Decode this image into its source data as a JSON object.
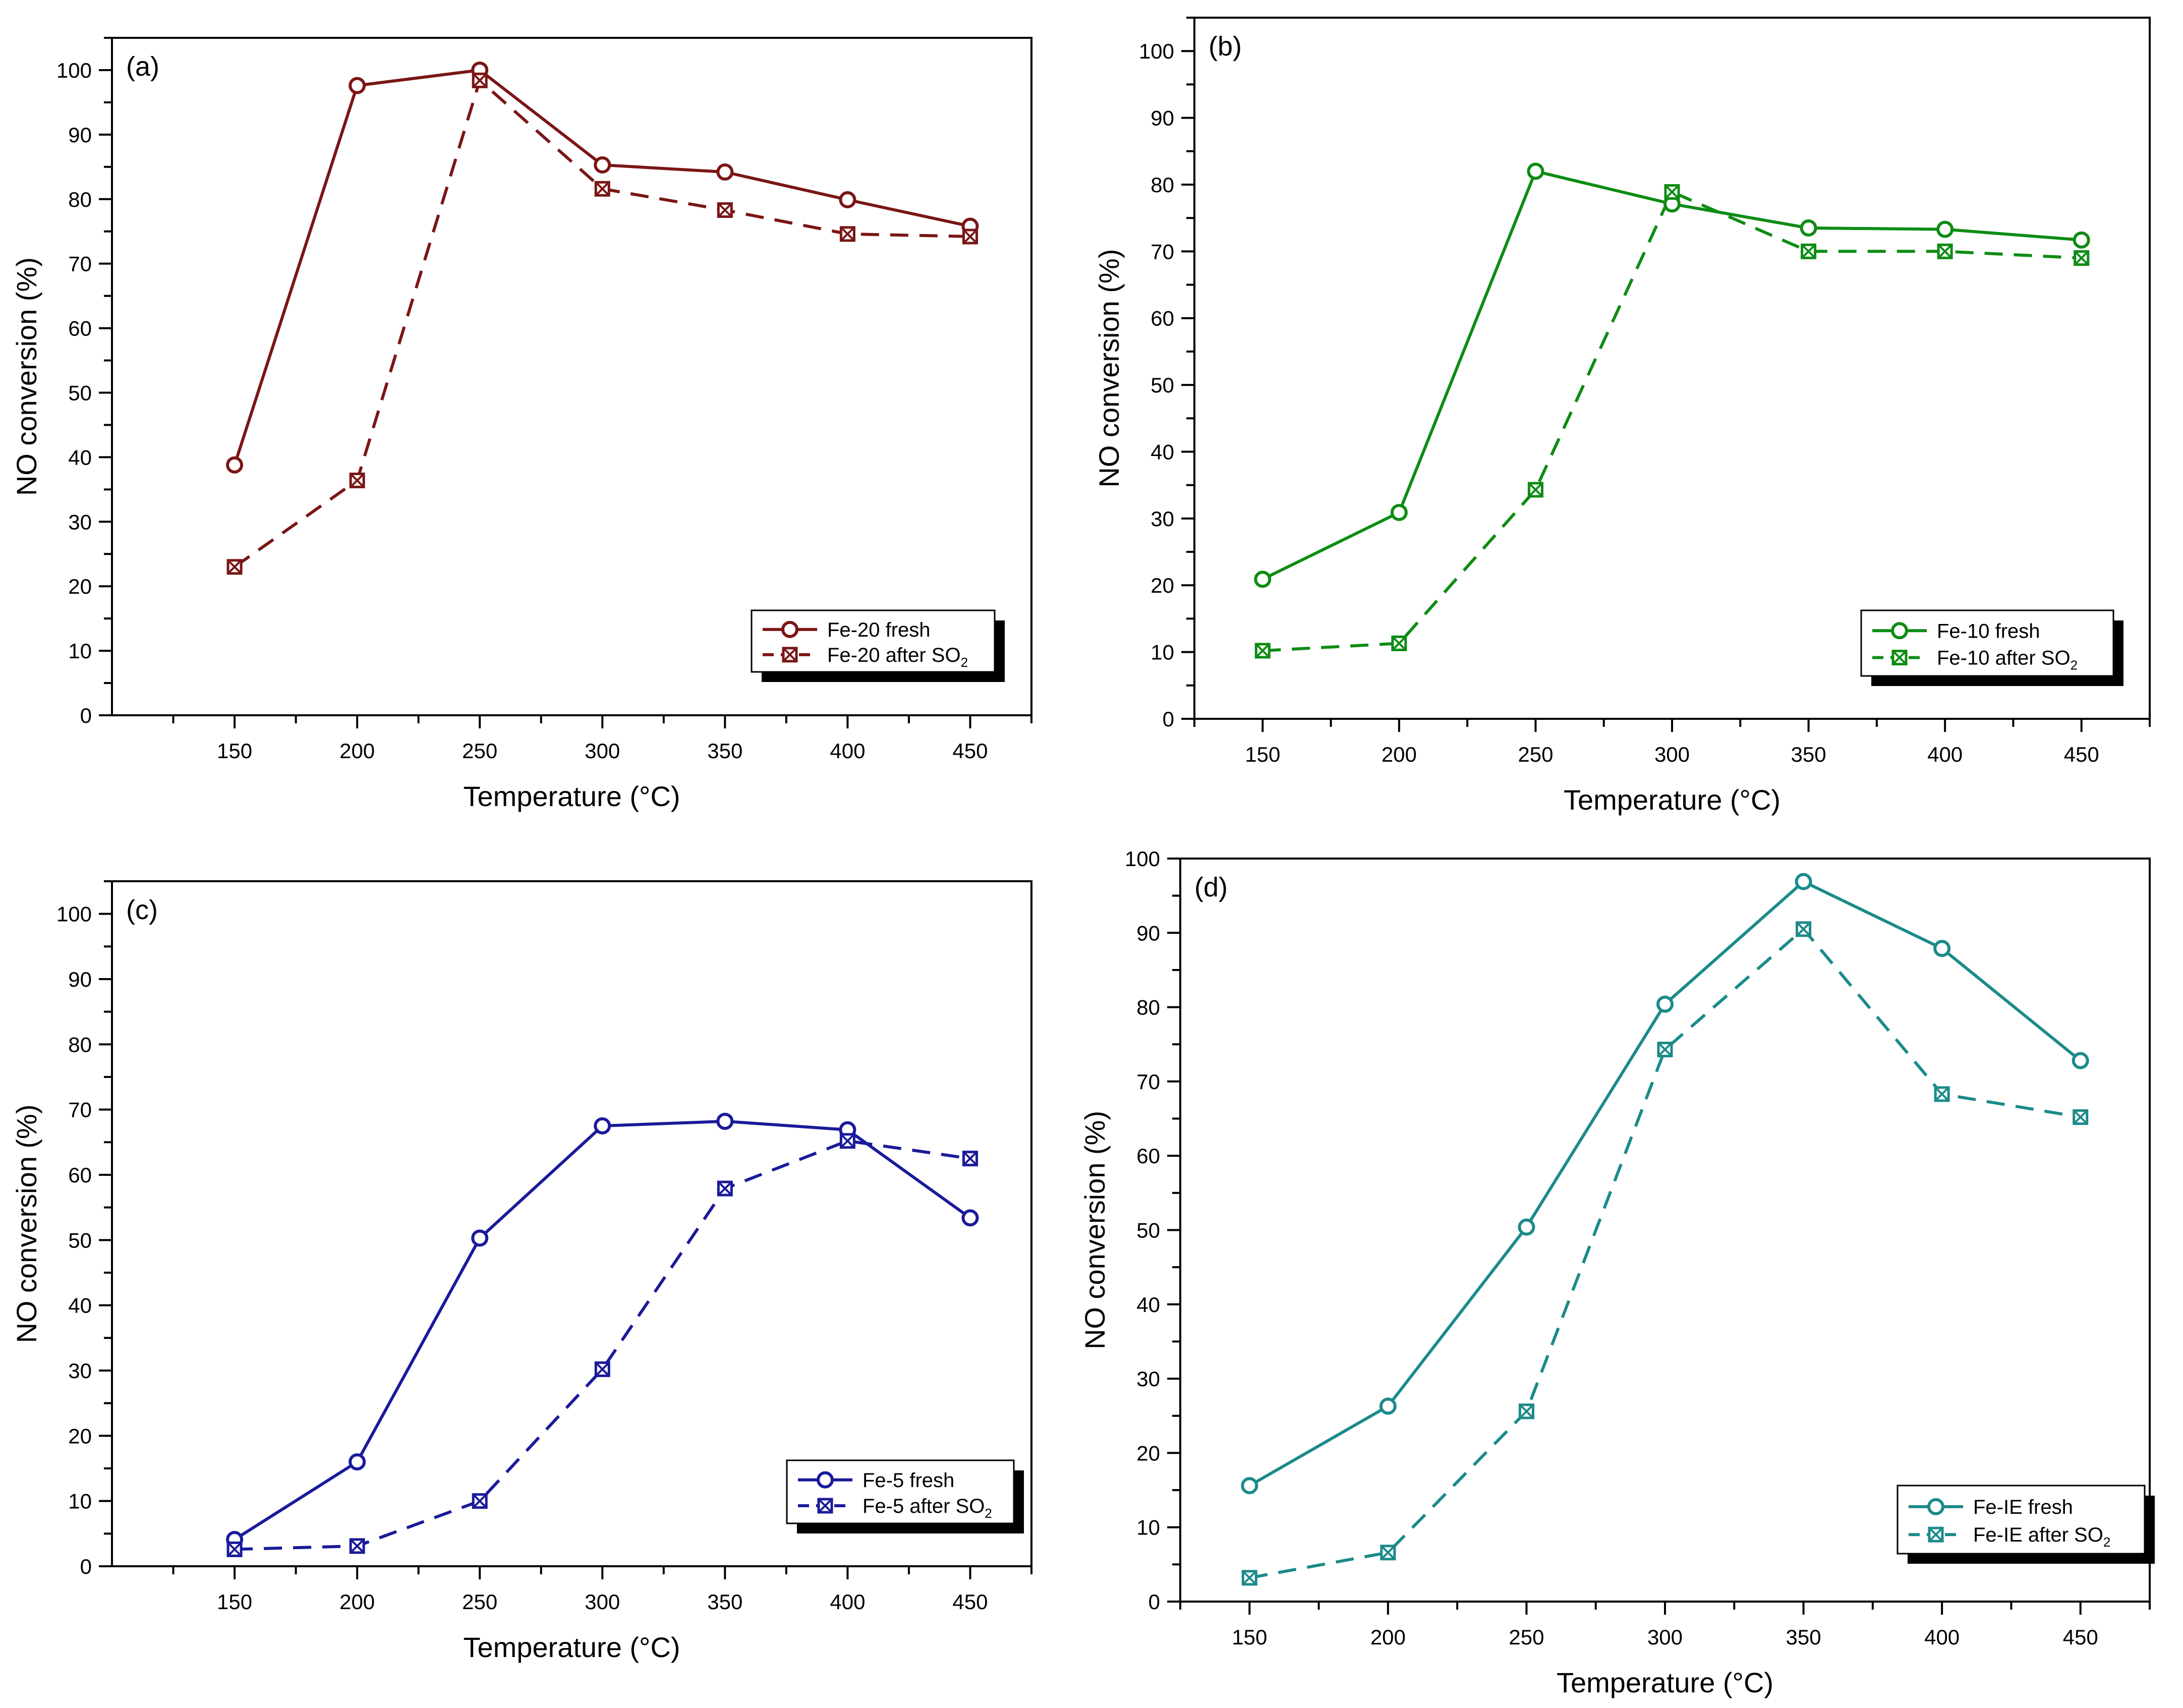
{
  "chart_data": [
    {
      "type": "line",
      "panel_label": "(a)",
      "xlabel": "Temperature (°C)",
      "ylabel": "NO conversion (%)",
      "x": [
        150,
        200,
        250,
        300,
        350,
        400,
        450
      ],
      "xlim": [
        100,
        475
      ],
      "ylim": [
        0,
        105
      ],
      "xticks": [
        150,
        200,
        250,
        300,
        350,
        400,
        450
      ],
      "yticks": [
        0,
        10,
        20,
        30,
        40,
        50,
        60,
        70,
        80,
        90,
        100
      ],
      "color": "#7b1515",
      "legend_position": "bottom-right",
      "series": [
        {
          "name": "Fe-20 fresh",
          "name_sub": "",
          "style": "solid",
          "marker": "circle",
          "values": [
            38.8,
            97.6,
            100,
            85.3,
            84.2,
            79.9,
            75.8
          ]
        },
        {
          "name": "Fe-20 after SO",
          "name_sub": "2",
          "style": "dashed",
          "marker": "crossed-square",
          "values": [
            23,
            36.4,
            98.4,
            81.6,
            78.3,
            74.6,
            74.2
          ]
        }
      ]
    },
    {
      "type": "line",
      "panel_label": "(b)",
      "xlabel": "Temperature (°C)",
      "ylabel": "NO conversion (%)",
      "x": [
        150,
        200,
        250,
        300,
        350,
        400,
        450
      ],
      "xlim": [
        125,
        475
      ],
      "ylim": [
        0,
        105
      ],
      "xticks": [
        150,
        200,
        250,
        300,
        350,
        400,
        450
      ],
      "yticks": [
        0,
        10,
        20,
        30,
        40,
        50,
        60,
        70,
        80,
        90,
        100
      ],
      "color": "#0d8c13",
      "legend_position": "bottom-right",
      "series": [
        {
          "name": "Fe-10 fresh",
          "name_sub": "",
          "style": "solid",
          "marker": "circle",
          "values": [
            20.9,
            30.9,
            82,
            77.1,
            73.5,
            73.3,
            71.7
          ]
        },
        {
          "name": "Fe-10 after SO",
          "name_sub": "2",
          "style": "dashed",
          "marker": "crossed-square",
          "values": [
            10.2,
            11.3,
            34.3,
            78.9,
            70,
            70,
            69
          ]
        }
      ]
    },
    {
      "type": "line",
      "panel_label": "(c)",
      "xlabel": "Temperature (°C)",
      "ylabel": "NO conversion (%)",
      "x": [
        150,
        200,
        250,
        300,
        350,
        400,
        450
      ],
      "xlim": [
        100,
        475
      ],
      "ylim": [
        0,
        105
      ],
      "xticks": [
        150,
        200,
        250,
        300,
        350,
        400,
        450
      ],
      "yticks": [
        0,
        10,
        20,
        30,
        40,
        50,
        60,
        70,
        80,
        90,
        100
      ],
      "color": "#1a1a9a",
      "legend_position": "bottom-right",
      "series": [
        {
          "name": "Fe-5 fresh",
          "name_sub": "",
          "style": "solid",
          "marker": "circle",
          "values": [
            4.1,
            16,
            50.3,
            67.5,
            68.2,
            66.9,
            53.4
          ]
        },
        {
          "name": "Fe-5 after SO",
          "name_sub": "2",
          "style": "dashed",
          "marker": "crossed-square",
          "values": [
            2.6,
            3.1,
            10,
            30.2,
            57.9,
            65.2,
            62.5
          ]
        }
      ]
    },
    {
      "type": "line",
      "panel_label": "(d)",
      "xlabel": "Temperature (°C)",
      "ylabel": "NO conversion (%)",
      "x": [
        150,
        200,
        250,
        300,
        350,
        400,
        450
      ],
      "xlim": [
        125,
        475
      ],
      "ylim": [
        0,
        100
      ],
      "xticks": [
        150,
        200,
        250,
        300,
        350,
        400,
        450
      ],
      "yticks": [
        0,
        10,
        20,
        30,
        40,
        50,
        60,
        70,
        80,
        90,
        100
      ],
      "color": "#1b8a8a",
      "legend_position": "bottom-right",
      "series": [
        {
          "name": "Fe-IE fresh",
          "name_sub": "",
          "style": "solid",
          "marker": "circle",
          "values": [
            15.6,
            26.3,
            50.4,
            80.4,
            96.9,
            87.9,
            72.8
          ]
        },
        {
          "name": "Fe-IE after SO",
          "name_sub": "2",
          "style": "dashed",
          "marker": "crossed-square",
          "values": [
            3.2,
            6.6,
            25.6,
            74.3,
            90.5,
            68.3,
            65.2
          ]
        }
      ]
    }
  ]
}
